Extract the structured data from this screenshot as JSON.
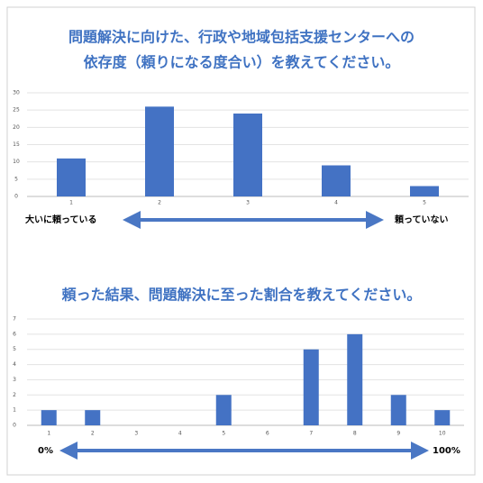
{
  "chart_data": [
    {
      "type": "bar",
      "title": [
        "問題解決に向けた、行政や地域包括支援センターへの",
        "依存度（頼りになる度合い）を教えてください。"
      ],
      "categories": [
        "1",
        "2",
        "3",
        "4",
        "5"
      ],
      "values": [
        11,
        26,
        24,
        9,
        3
      ],
      "color": "#4472c4",
      "ylim": [
        0,
        30
      ],
      "yticks": [
        0,
        5,
        10,
        15,
        20,
        25,
        30
      ],
      "grid": true,
      "annotations": [
        "大いに頼っている",
        "頼っていない"
      ]
    },
    {
      "type": "bar",
      "title": [
        "頼った結果、問題解決に至った割合を教えてください。"
      ],
      "categories": [
        "1",
        "2",
        "3",
        "4",
        "5",
        "6",
        "7",
        "8",
        "9",
        "10"
      ],
      "values": [
        1,
        1,
        0,
        0,
        2,
        0,
        5,
        6,
        2,
        1
      ],
      "color": "#4472c4",
      "ylim": [
        0,
        7
      ],
      "yticks": [
        0,
        1,
        2,
        3,
        4,
        5,
        6,
        7
      ],
      "grid": true,
      "annotations": [
        "0%",
        "100%"
      ]
    }
  ]
}
